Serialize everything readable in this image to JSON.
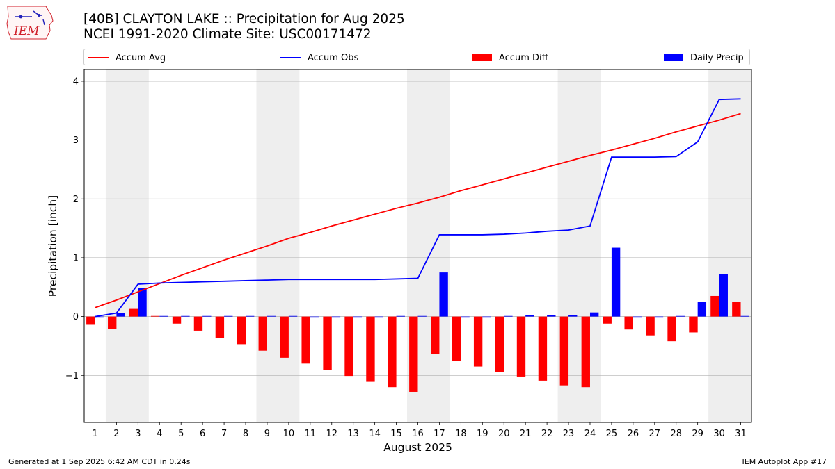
{
  "logo": {
    "text": "IEM",
    "color": "#d0202a"
  },
  "title": {
    "line1": "[40B] CLAYTON LAKE :: Precipitation for Aug 2025",
    "line2": "NCEI 1991-2020 Climate Site: USC00171472"
  },
  "legend": [
    {
      "label": "Accum Avg",
      "kind": "line",
      "color": "#ff0000"
    },
    {
      "label": "Accum Obs",
      "kind": "line",
      "color": "#0000ff"
    },
    {
      "label": "Accum Diff",
      "kind": "bar",
      "color": "#ff0000"
    },
    {
      "label": "Daily Precip",
      "kind": "bar",
      "color": "#0000ff"
    }
  ],
  "footer": {
    "left": "Generated at 1 Sep 2025 6:42 AM CDT in 0.24s",
    "right": "IEM Autoplot App #17"
  },
  "chart_data": {
    "type": "bar",
    "xlabel": "August 2025",
    "ylabel": "Precipitation [inch]",
    "xlim": [
      0.5,
      31.5
    ],
    "ylim": [
      -1.8,
      4.2
    ],
    "yticks": [
      -1,
      0,
      1,
      2,
      3,
      4
    ],
    "ytick_labels": [
      "−1",
      "0",
      "1",
      "2",
      "3",
      "4"
    ],
    "grid": "y",
    "legend_position": "top",
    "weekend_shading": [
      [
        1.5,
        3.5
      ],
      [
        8.5,
        10.5
      ],
      [
        15.5,
        17.5
      ],
      [
        22.5,
        24.5
      ],
      [
        29.5,
        31.5
      ]
    ],
    "shade_color": "#eeeeee",
    "categories": [
      "1",
      "2",
      "3",
      "4",
      "5",
      "6",
      "7",
      "8",
      "9",
      "10",
      "11",
      "12",
      "13",
      "14",
      "15",
      "16",
      "17",
      "18",
      "19",
      "20",
      "21",
      "22",
      "23",
      "24",
      "25",
      "26",
      "27",
      "28",
      "29",
      "30",
      "31"
    ],
    "series": [
      {
        "name": "Accum Avg",
        "kind": "line",
        "color": "#ff0000",
        "values": [
          0.15,
          0.28,
          0.42,
          0.56,
          0.7,
          0.83,
          0.96,
          1.08,
          1.2,
          1.33,
          1.43,
          1.54,
          1.64,
          1.74,
          1.84,
          1.93,
          2.03,
          2.14,
          2.24,
          2.34,
          2.44,
          2.54,
          2.64,
          2.74,
          2.83,
          2.93,
          3.03,
          3.14,
          3.24,
          3.34,
          3.45
        ]
      },
      {
        "name": "Accum Obs",
        "kind": "line",
        "color": "#0000ff",
        "values": [
          0.0,
          0.06,
          0.55,
          0.57,
          0.58,
          0.59,
          0.6,
          0.61,
          0.62,
          0.63,
          0.63,
          0.63,
          0.63,
          0.63,
          0.64,
          0.65,
          1.39,
          1.39,
          1.39,
          1.4,
          1.42,
          1.45,
          1.47,
          1.54,
          2.71,
          2.71,
          2.71,
          2.72,
          2.97,
          3.69,
          3.7
        ]
      },
      {
        "name": "Accum Diff",
        "kind": "bar",
        "color": "#ff0000",
        "values": [
          -0.14,
          -0.21,
          0.13,
          0.01,
          -0.12,
          -0.24,
          -0.36,
          -0.47,
          -0.58,
          -0.7,
          -0.8,
          -0.91,
          -1.01,
          -1.11,
          -1.2,
          -1.28,
          -0.64,
          -0.75,
          -0.85,
          -0.94,
          -1.02,
          -1.09,
          -1.17,
          -1.2,
          -0.12,
          -0.22,
          -0.32,
          -0.42,
          -0.27,
          0.35,
          0.25
        ]
      },
      {
        "name": "Daily Precip",
        "kind": "bar",
        "color": "#0000ff",
        "values": [
          0.0,
          0.06,
          0.49,
          0.01,
          0.01,
          0.01,
          0.01,
          0.01,
          0.01,
          0.01,
          0.0,
          0.0,
          0.0,
          0.0,
          0.01,
          0.01,
          0.75,
          0.0,
          0.0,
          0.01,
          0.02,
          0.03,
          0.02,
          0.07,
          1.17,
          0.0,
          0.0,
          0.01,
          0.25,
          0.72,
          0.01
        ]
      }
    ]
  }
}
